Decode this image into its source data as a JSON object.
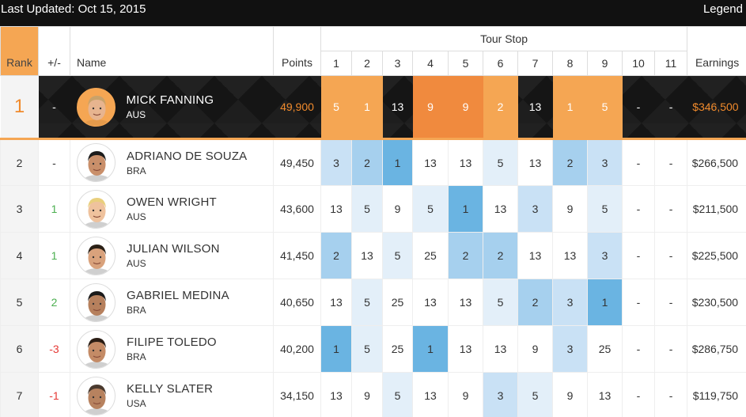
{
  "header": {
    "last_updated": "Last Updated: Oct 15, 2015",
    "legend": "Legend"
  },
  "columns": {
    "rank": "Rank",
    "change": "+/-",
    "name": "Name",
    "points": "Points",
    "tour_stop": "Tour Stop",
    "earnings": "Earnings",
    "stops": [
      "1",
      "2",
      "3",
      "4",
      "5",
      "6",
      "7",
      "8",
      "9",
      "10",
      "11"
    ]
  },
  "colors": {
    "accent_orange": "#f5a653",
    "deep_orange": "#f08a3e",
    "blue_best": "#6ab4e2",
    "blue_mid": "#a6d0ee",
    "blue_light": "#c9e1f5",
    "blue_faint": "#e3eff9",
    "up_green": "#4caf50",
    "down_red": "#e53935"
  },
  "rows": [
    {
      "rank": "1",
      "change": "-",
      "name": "MICK FANNING",
      "country": "AUS",
      "points": "49,900",
      "stops": [
        "5",
        "1",
        "13",
        "9",
        "9",
        "2",
        "13",
        "1",
        "5",
        "-",
        "-"
      ],
      "earnings": "$346,500"
    },
    {
      "rank": "2",
      "change": "-",
      "name": "ADRIANO DE SOUZA",
      "country": "BRA",
      "points": "49,450",
      "stops": [
        "3",
        "2",
        "1",
        "13",
        "13",
        "5",
        "13",
        "2",
        "3",
        "-",
        "-"
      ],
      "earnings": "$266,500"
    },
    {
      "rank": "3",
      "change": "1",
      "name": "OWEN WRIGHT",
      "country": "AUS",
      "points": "43,600",
      "stops": [
        "13",
        "5",
        "9",
        "5",
        "1",
        "13",
        "3",
        "9",
        "5",
        "-",
        "-"
      ],
      "earnings": "$211,500"
    },
    {
      "rank": "4",
      "change": "1",
      "name": "JULIAN WILSON",
      "country": "AUS",
      "points": "41,450",
      "stops": [
        "2",
        "13",
        "5",
        "25",
        "2",
        "2",
        "13",
        "13",
        "3",
        "-",
        "-"
      ],
      "earnings": "$225,500"
    },
    {
      "rank": "5",
      "change": "2",
      "name": "GABRIEL MEDINA",
      "country": "BRA",
      "points": "40,650",
      "stops": [
        "13",
        "5",
        "25",
        "13",
        "13",
        "5",
        "2",
        "3",
        "1",
        "-",
        "-"
      ],
      "earnings": "$230,500"
    },
    {
      "rank": "6",
      "change": "-3",
      "name": "FILIPE TOLEDO",
      "country": "BRA",
      "points": "40,200",
      "stops": [
        "1",
        "5",
        "25",
        "1",
        "13",
        "13",
        "9",
        "3",
        "25",
        "-",
        "-"
      ],
      "earnings": "$286,750"
    },
    {
      "rank": "7",
      "change": "-1",
      "name": "KELLY SLATER",
      "country": "USA",
      "points": "34,150",
      "stops": [
        "13",
        "9",
        "5",
        "13",
        "9",
        "3",
        "5",
        "9",
        "13",
        "-",
        "-"
      ],
      "earnings": "$119,750"
    }
  ]
}
